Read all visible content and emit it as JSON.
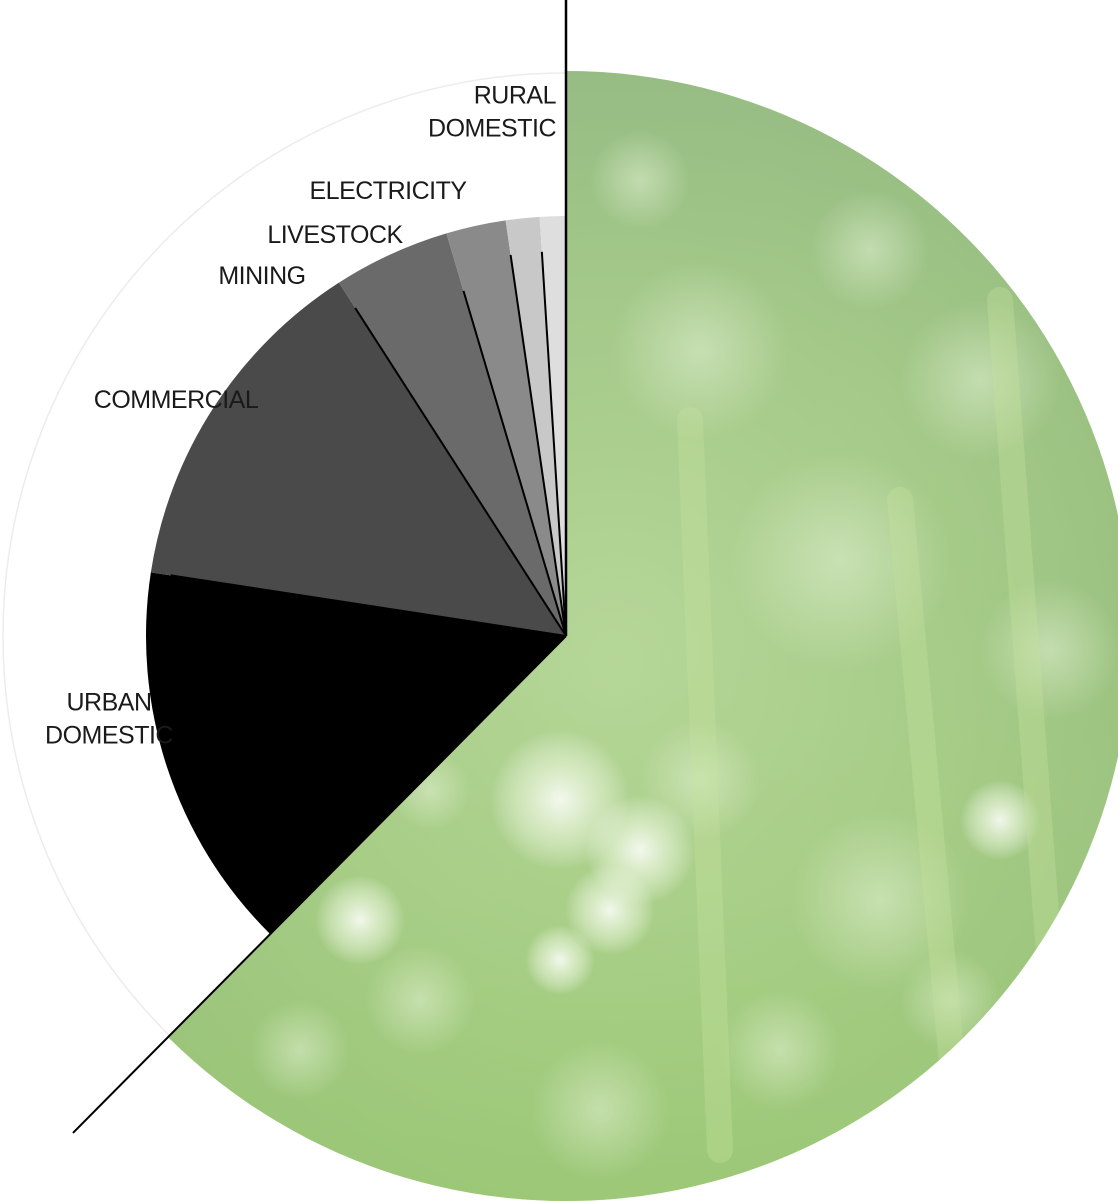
{
  "chart_data": {
    "type": "pie",
    "title": "",
    "labels": [
      "AGRICULTURE (unlabeled)",
      "URBAN DOMESTIC",
      "COMMERCIAL",
      "MINING",
      "LIVESTOCK",
      "ELECTRICITY",
      "RURAL DOMESTIC"
    ],
    "values": [
      62.5,
      15.0,
      13.5,
      4.5,
      2.3,
      1.3,
      1.0
    ],
    "label_lines": {
      "URBAN DOMESTIC": [
        "URBAN",
        "DOMESTIC"
      ],
      "COMMERCIAL": [
        "COMMERCIAL"
      ],
      "MINING": [
        "MINING"
      ],
      "LIVESTOCK": [
        "LIVESTOCK"
      ],
      "ELECTRICITY": [
        "ELECTRICITY"
      ],
      "RURAL DOMESTIC": [
        "RURAL",
        "DOMESTIC"
      ]
    },
    "colors": {
      "URBAN DOMESTIC": "#000000",
      "COMMERCIAL": "#4a4a4a",
      "MINING": "#6a6a6a",
      "LIVESTOCK": "#8a8a8a",
      "ELECTRICITY": "#c8c8c8",
      "RURAL DOMESTIC": "#dedede",
      "AGRICULTURE (unlabeled)": "#a8c98e"
    },
    "start": "12 o'clock",
    "direction": "clockwise",
    "largest_slice_fill": "green dewy grass photo texture"
  }
}
